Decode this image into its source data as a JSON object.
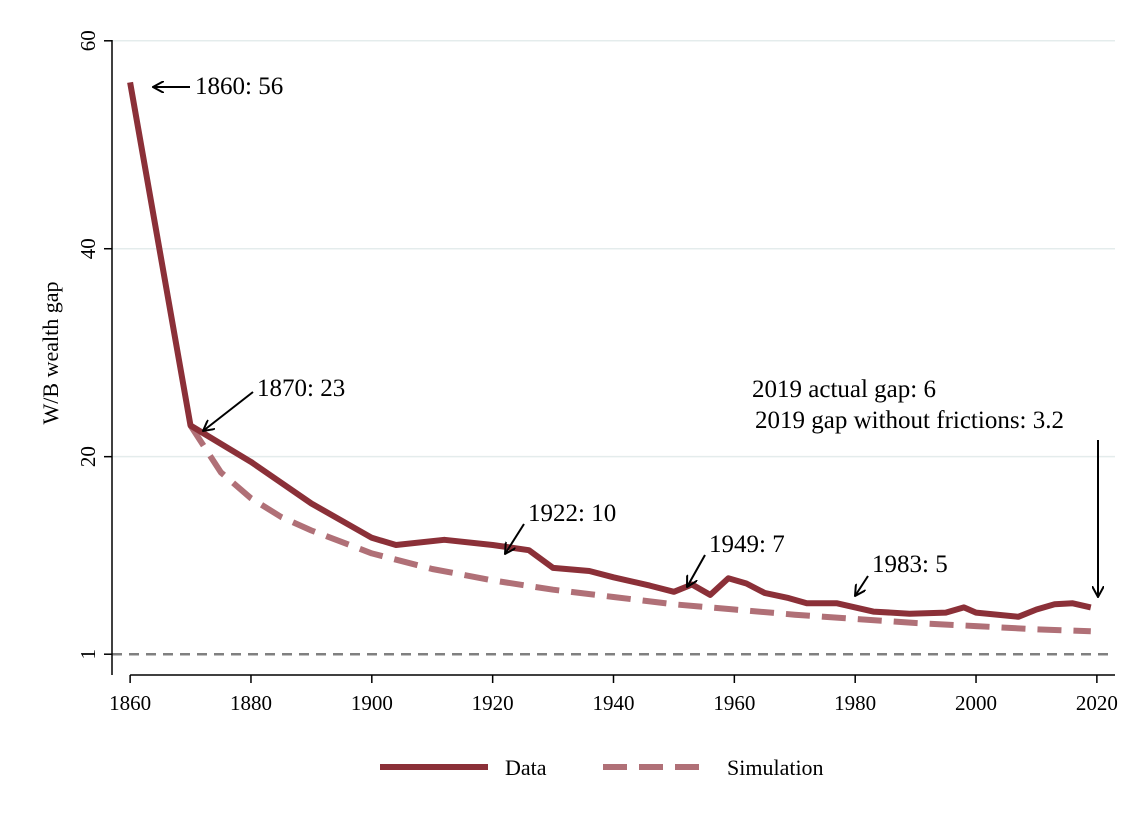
{
  "chart_data": {
    "type": "line",
    "title": "",
    "xlabel": "",
    "ylabel": "W/B wealth gap",
    "xlim": [
      1857,
      2023
    ],
    "ylim": [
      -1,
      62
    ],
    "x_ticks": [
      1860,
      1880,
      1900,
      1920,
      1940,
      1960,
      1980,
      2000,
      2020
    ],
    "y_ticks": [
      1,
      20,
      40,
      60
    ],
    "grid": true,
    "legend_position": "bottom",
    "reference_line": {
      "y": 1,
      "style": "dashed",
      "color": "#808080"
    },
    "series": [
      {
        "name": "Data",
        "color": "#8B3038",
        "style": "solid",
        "points": [
          [
            1860,
            56
          ],
          [
            1870,
            23
          ],
          [
            1880,
            19.5
          ],
          [
            1890,
            15.5
          ],
          [
            1900,
            12.2
          ],
          [
            1904,
            11.5
          ],
          [
            1912,
            12
          ],
          [
            1920,
            11.5
          ],
          [
            1926,
            11
          ],
          [
            1930,
            9.3
          ],
          [
            1936,
            9
          ],
          [
            1940,
            8.4
          ],
          [
            1946,
            7.6
          ],
          [
            1950,
            7
          ],
          [
            1953,
            7.7
          ],
          [
            1956,
            6.7
          ],
          [
            1959,
            8.3
          ],
          [
            1962,
            7.8
          ],
          [
            1965,
            6.9
          ],
          [
            1969,
            6.4
          ],
          [
            1972,
            5.9
          ],
          [
            1977,
            5.9
          ],
          [
            1980,
            5.5
          ],
          [
            1983,
            5.1
          ],
          [
            1989,
            4.9
          ],
          [
            1995,
            5
          ],
          [
            1998,
            5.5
          ],
          [
            2000,
            5
          ],
          [
            2007,
            4.6
          ],
          [
            2010,
            5.3
          ],
          [
            2013,
            5.8
          ],
          [
            2016,
            5.9
          ],
          [
            2019,
            5.5
          ]
        ]
      },
      {
        "name": "Simulation",
        "color": "#B07077",
        "style": "dashed",
        "points": [
          [
            1870,
            23
          ],
          [
            1875,
            18.5
          ],
          [
            1880,
            16
          ],
          [
            1885,
            14.2
          ],
          [
            1890,
            12.9
          ],
          [
            1900,
            10.7
          ],
          [
            1910,
            9.2
          ],
          [
            1920,
            8.1
          ],
          [
            1930,
            7.2
          ],
          [
            1940,
            6.5
          ],
          [
            1950,
            5.8
          ],
          [
            1960,
            5.3
          ],
          [
            1970,
            4.8
          ],
          [
            1980,
            4.4
          ],
          [
            1990,
            4
          ],
          [
            2000,
            3.7
          ],
          [
            2010,
            3.4
          ],
          [
            2019,
            3.2
          ]
        ]
      }
    ],
    "annotations": [
      {
        "text": "1860: 56",
        "year": 1860,
        "value": 56
      },
      {
        "text": "1870: 23",
        "year": 1870,
        "value": 23
      },
      {
        "text": "1922: 10",
        "year": 1922,
        "value": 10
      },
      {
        "text": "1949: 7",
        "year": 1949,
        "value": 7
      },
      {
        "text": "1983: 5",
        "year": 1983,
        "value": 5
      },
      {
        "text": "2019 actual gap: 6",
        "year": 2019,
        "value": 6
      },
      {
        "text": "2019 gap without frictions: 3.2",
        "year": 2019,
        "value": 3.2
      }
    ]
  }
}
